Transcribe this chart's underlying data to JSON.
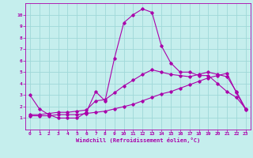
{
  "xlabel": "Windchill (Refroidissement éolien,°C)",
  "xlim": [
    -0.5,
    23.5
  ],
  "ylim": [
    0,
    11
  ],
  "xticks": [
    0,
    1,
    2,
    3,
    4,
    5,
    6,
    7,
    8,
    9,
    10,
    11,
    12,
    13,
    14,
    15,
    16,
    17,
    18,
    19,
    20,
    21,
    22,
    23
  ],
  "yticks": [
    1,
    2,
    3,
    4,
    5,
    6,
    7,
    8,
    9,
    10
  ],
  "background_color": "#c5eeed",
  "grid_color": "#9fd8d8",
  "line_color": "#aa00aa",
  "series1_y": [
    3.0,
    1.8,
    1.3,
    1.0,
    1.0,
    1.0,
    1.5,
    3.3,
    2.5,
    6.2,
    9.3,
    10.0,
    10.5,
    10.2,
    7.3,
    5.8,
    5.0,
    5.0,
    4.7,
    4.7,
    4.0,
    3.3,
    2.8,
    1.8
  ],
  "series2_y": [
    1.2,
    1.2,
    1.2,
    1.3,
    1.3,
    1.3,
    1.4,
    1.5,
    1.6,
    1.8,
    2.0,
    2.2,
    2.5,
    2.8,
    3.1,
    3.3,
    3.6,
    3.9,
    4.2,
    4.5,
    4.7,
    4.9,
    3.2,
    1.7
  ],
  "series3_y": [
    1.3,
    1.3,
    1.4,
    1.5,
    1.5,
    1.6,
    1.7,
    2.5,
    2.6,
    3.2,
    3.8,
    4.3,
    4.8,
    5.2,
    5.0,
    4.8,
    4.7,
    4.6,
    4.8,
    5.0,
    4.8,
    4.6,
    3.3,
    1.8
  ]
}
